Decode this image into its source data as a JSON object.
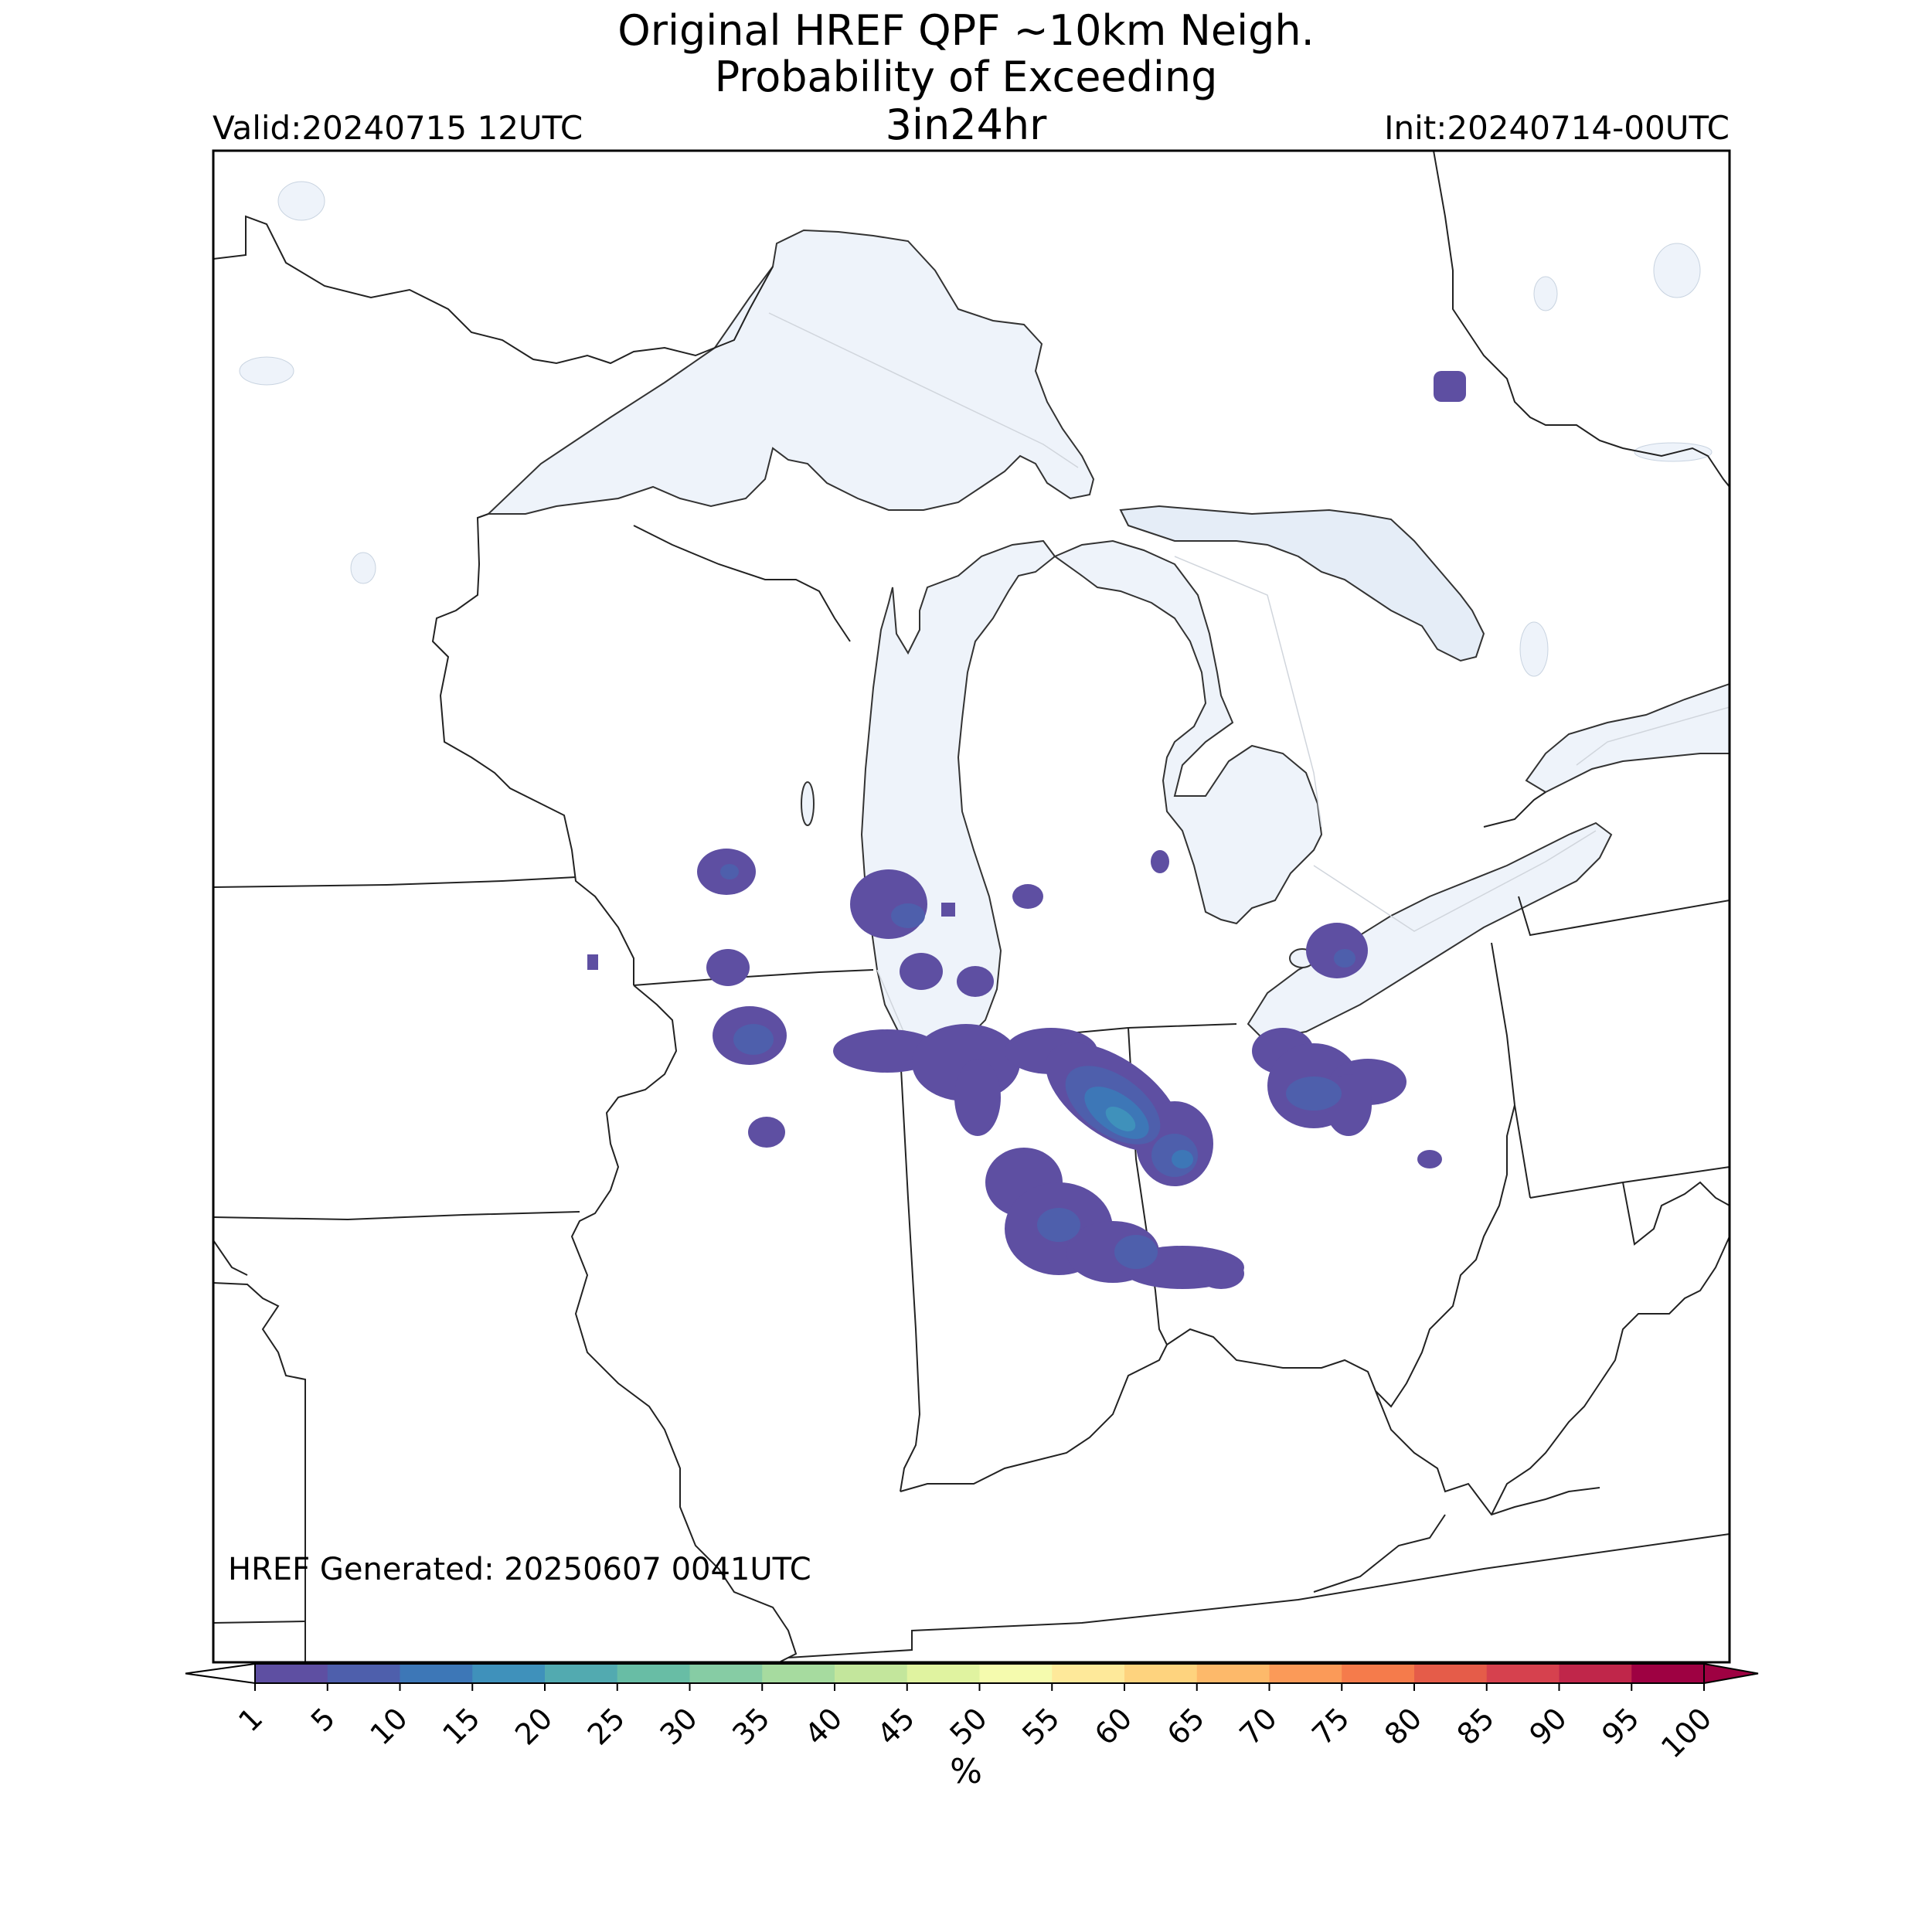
{
  "title": {
    "line1": "Original HREF QPF ~10km Neigh.",
    "line2": "Probability of Exceeding",
    "line3": "3in24hr"
  },
  "valid_label": "Valid:20240715 12UTC",
  "init_label": "Init:20240714-00UTC",
  "generated_label": "HREF Generated: 20250607 0041UTC",
  "colorbar": {
    "unit": "%",
    "ticks": [
      "1",
      "5",
      "10",
      "15",
      "20",
      "25",
      "30",
      "35",
      "40",
      "45",
      "50",
      "55",
      "60",
      "65",
      "70",
      "75",
      "80",
      "85",
      "90",
      "95",
      "100"
    ],
    "colors": [
      "#5e4fa2",
      "#4e5fac",
      "#3d77b7",
      "#3f91bb",
      "#52aab0",
      "#68bda5",
      "#86cca4",
      "#a6db9f",
      "#c3e69c",
      "#e0f3a0",
      "#f5fbae",
      "#fee99a",
      "#fed37e",
      "#fdb96a",
      "#fb9a58",
      "#f57b4b",
      "#e55c49",
      "#d6414e",
      "#c0264a",
      "#9e0142"
    ],
    "under_color": "#ffffff",
    "over_color": "#9e0142"
  },
  "colors": {
    "lake_fill": "#eef3fa",
    "lake_fill_dark": "#e5edf7",
    "prob_1": "#5e4fa2",
    "prob_5": "#4e5fac",
    "prob_10": "#3d77b7",
    "prob_15": "#3f91bb"
  }
}
